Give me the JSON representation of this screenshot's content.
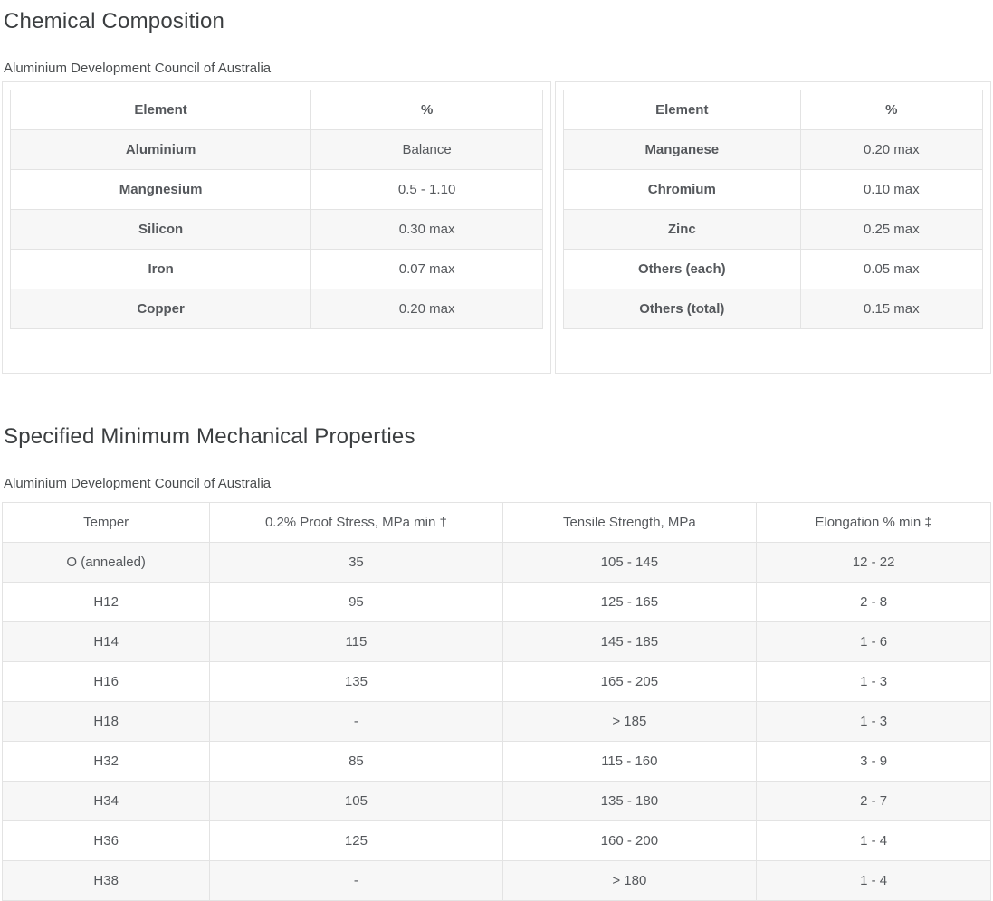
{
  "colors": {
    "heading_text": "#3b3e40",
    "body_text": "#55585c",
    "table_border": "#e3e3e3",
    "panel_border": "#e4e4e4",
    "stripe_row_bg": "#f7f7f7",
    "page_bg": "#ffffff"
  },
  "sections": [
    {
      "title": "Chemical Composition",
      "subtitle": "Aluminium Development Council of Australia",
      "tables": [
        {
          "headers": [
            "Element",
            "%"
          ],
          "rows": [
            [
              "Aluminium",
              "Balance"
            ],
            [
              "Mangnesium",
              "0.5 - 1.10"
            ],
            [
              "Silicon",
              "0.30 max"
            ],
            [
              "Iron",
              "0.07 max"
            ],
            [
              "Copper",
              "0.20 max"
            ]
          ]
        },
        {
          "headers": [
            "Element",
            "%"
          ],
          "rows": [
            [
              "Manganese",
              "0.20 max"
            ],
            [
              "Chromium",
              "0.10 max"
            ],
            [
              "Zinc",
              "0.25 max"
            ],
            [
              "Others (each)",
              "0.05 max"
            ],
            [
              "Others (total)",
              "0.15 max"
            ]
          ]
        }
      ]
    },
    {
      "title": "Specified Minimum Mechanical Properties",
      "subtitle": "Aluminium Development Council of Australia",
      "table": {
        "headers": [
          "Temper",
          "0.2% Proof Stress, MPa min †",
          "Tensile Strength, MPa",
          "Elongation % min ‡"
        ],
        "rows": [
          [
            "O (annealed)",
            "35",
            "105 - 145",
            "12 - 22"
          ],
          [
            "H12",
            "95",
            "125 - 165",
            "2 - 8"
          ],
          [
            "H14",
            "115",
            "145 - 185",
            "1 - 6"
          ],
          [
            "H16",
            "135",
            "165 - 205",
            "1 - 3"
          ],
          [
            "H18",
            "-",
            "> 185",
            "1 - 3"
          ],
          [
            "H32",
            "85",
            "115 - 160",
            "3 - 9"
          ],
          [
            "H34",
            "105",
            "135 - 180",
            "2 - 7"
          ],
          [
            "H36",
            "125",
            "160 - 200",
            "1 - 4"
          ],
          [
            "H38",
            "-",
            "> 180",
            "1 - 4"
          ]
        ]
      }
    }
  ]
}
